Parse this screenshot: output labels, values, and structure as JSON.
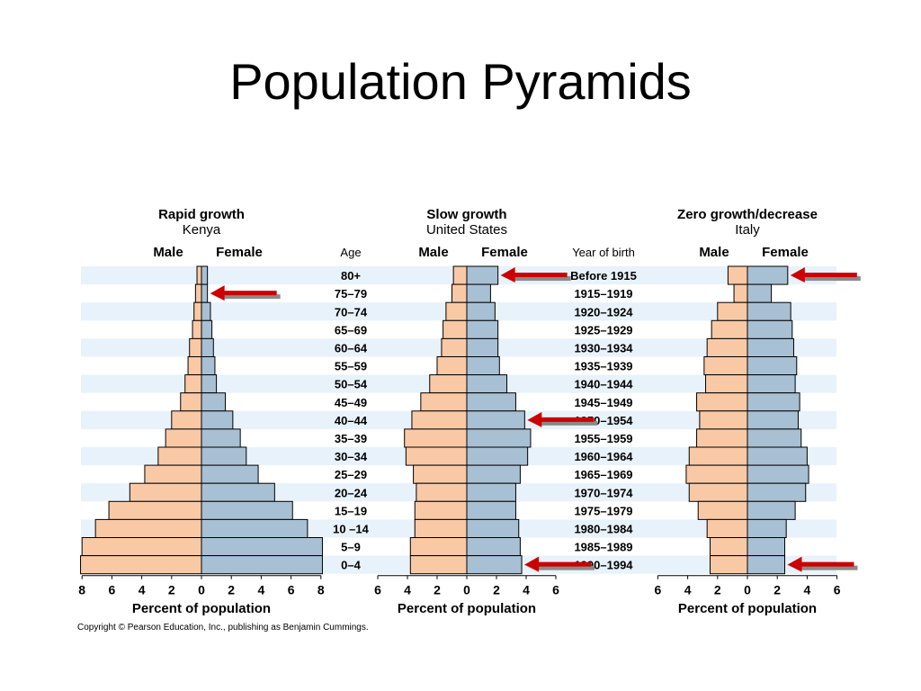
{
  "slide": {
    "title": "Population Pyramids",
    "copyright": "Copyright © Pearson Education, Inc., publishing as Benjamin Cummings."
  },
  "labels": {
    "age_header": "Age",
    "year_header": "Year of birth"
  },
  "colors": {
    "male": "#f9c9a6",
    "female": "#a8c0d4",
    "band": "#e8f2fa",
    "arrow": "#cc0000",
    "arrow_shadow": "#8a8a8a"
  },
  "chart_data": [
    {
      "type": "bar",
      "title": "Rapid growth",
      "subtitle": "Kenya",
      "male_label": "Male",
      "female_label": "Female",
      "xlabel": "Percent of population",
      "xlim": [
        -8,
        8
      ],
      "x_ticks": [
        "8",
        "6",
        "4",
        "2",
        "0",
        "2",
        "4",
        "6",
        "8"
      ],
      "categories": [
        "80+",
        "75–79",
        "70–74",
        "65–69",
        "60–64",
        "55–59",
        "50–54",
        "45–49",
        "40–44",
        "35–39",
        "30–34",
        "25–29",
        "20–24",
        "15–19",
        "10 –14",
        "5–9",
        "0–4"
      ],
      "years_of_birth": [
        "Before 1915",
        "1915–1919",
        "1920–1924",
        "1925–1929",
        "1930–1934",
        "1935–1939",
        "1940–1944",
        "1945–1949",
        "1950–1954",
        "1955–1959",
        "1960–1964",
        "1965–1969",
        "1970–1974",
        "1975–1979",
        "1980–1984",
        "1985–1989",
        "1990–1994"
      ],
      "series": [
        {
          "name": "Male",
          "values": [
            0.3,
            0.4,
            0.5,
            0.6,
            0.8,
            0.9,
            1.1,
            1.4,
            2.0,
            2.4,
            2.9,
            3.8,
            4.8,
            6.2,
            7.1,
            8.0,
            8.1
          ]
        },
        {
          "name": "Female",
          "values": [
            0.4,
            0.4,
            0.6,
            0.7,
            0.8,
            0.9,
            1.0,
            1.6,
            2.1,
            2.6,
            3.0,
            3.8,
            4.9,
            6.1,
            7.1,
            8.1,
            8.1
          ]
        }
      ],
      "arrows": [
        1
      ]
    },
    {
      "type": "bar",
      "title": "Slow growth",
      "subtitle": "United States",
      "male_label": "Male",
      "female_label": "Female",
      "xlabel": "Percent of population",
      "xlim": [
        -6,
        6
      ],
      "x_ticks": [
        "6",
        "4",
        "2",
        "0",
        "2",
        "4",
        "6"
      ],
      "categories": [
        "80+",
        "75–79",
        "70–74",
        "65–69",
        "60–64",
        "55–59",
        "50–54",
        "45–49",
        "40–44",
        "35–39",
        "30–34",
        "25–29",
        "20–24",
        "15–19",
        "10 –14",
        "5–9",
        "0–4"
      ],
      "series": [
        {
          "name": "Male",
          "values": [
            0.9,
            1.0,
            1.4,
            1.6,
            1.7,
            2.0,
            2.5,
            3.1,
            3.7,
            4.2,
            4.1,
            3.6,
            3.4,
            3.5,
            3.5,
            3.8,
            3.8
          ]
        },
        {
          "name": "Female",
          "values": [
            2.1,
            1.6,
            1.9,
            2.1,
            2.1,
            2.2,
            2.7,
            3.3,
            3.9,
            4.3,
            4.1,
            3.6,
            3.3,
            3.3,
            3.5,
            3.6,
            3.7
          ]
        }
      ],
      "arrows": [
        0,
        8,
        16
      ]
    },
    {
      "type": "bar",
      "title": "Zero growth/decrease",
      "subtitle": "Italy",
      "male_label": "Male",
      "female_label": "Female",
      "xlabel": "Percent of population",
      "xlim": [
        -6,
        6
      ],
      "x_ticks": [
        "6",
        "4",
        "2",
        "0",
        "2",
        "4",
        "6"
      ],
      "categories": [
        "80+",
        "75–79",
        "70–74",
        "65–69",
        "60–64",
        "55–59",
        "50–54",
        "45–49",
        "40–44",
        "35–39",
        "30–34",
        "25–29",
        "20–24",
        "15–19",
        "10 –14",
        "5–9",
        "0–4"
      ],
      "series": [
        {
          "name": "Male",
          "values": [
            1.3,
            0.9,
            2.0,
            2.4,
            2.7,
            2.9,
            2.8,
            3.4,
            3.2,
            3.4,
            3.9,
            4.1,
            3.9,
            3.3,
            2.7,
            2.5,
            2.5
          ]
        },
        {
          "name": "Female",
          "values": [
            2.7,
            1.6,
            2.9,
            3.0,
            3.1,
            3.3,
            3.2,
            3.5,
            3.4,
            3.6,
            4.0,
            4.1,
            3.9,
            3.2,
            2.6,
            2.5,
            2.5
          ]
        }
      ],
      "arrows": [
        0,
        16
      ]
    }
  ]
}
